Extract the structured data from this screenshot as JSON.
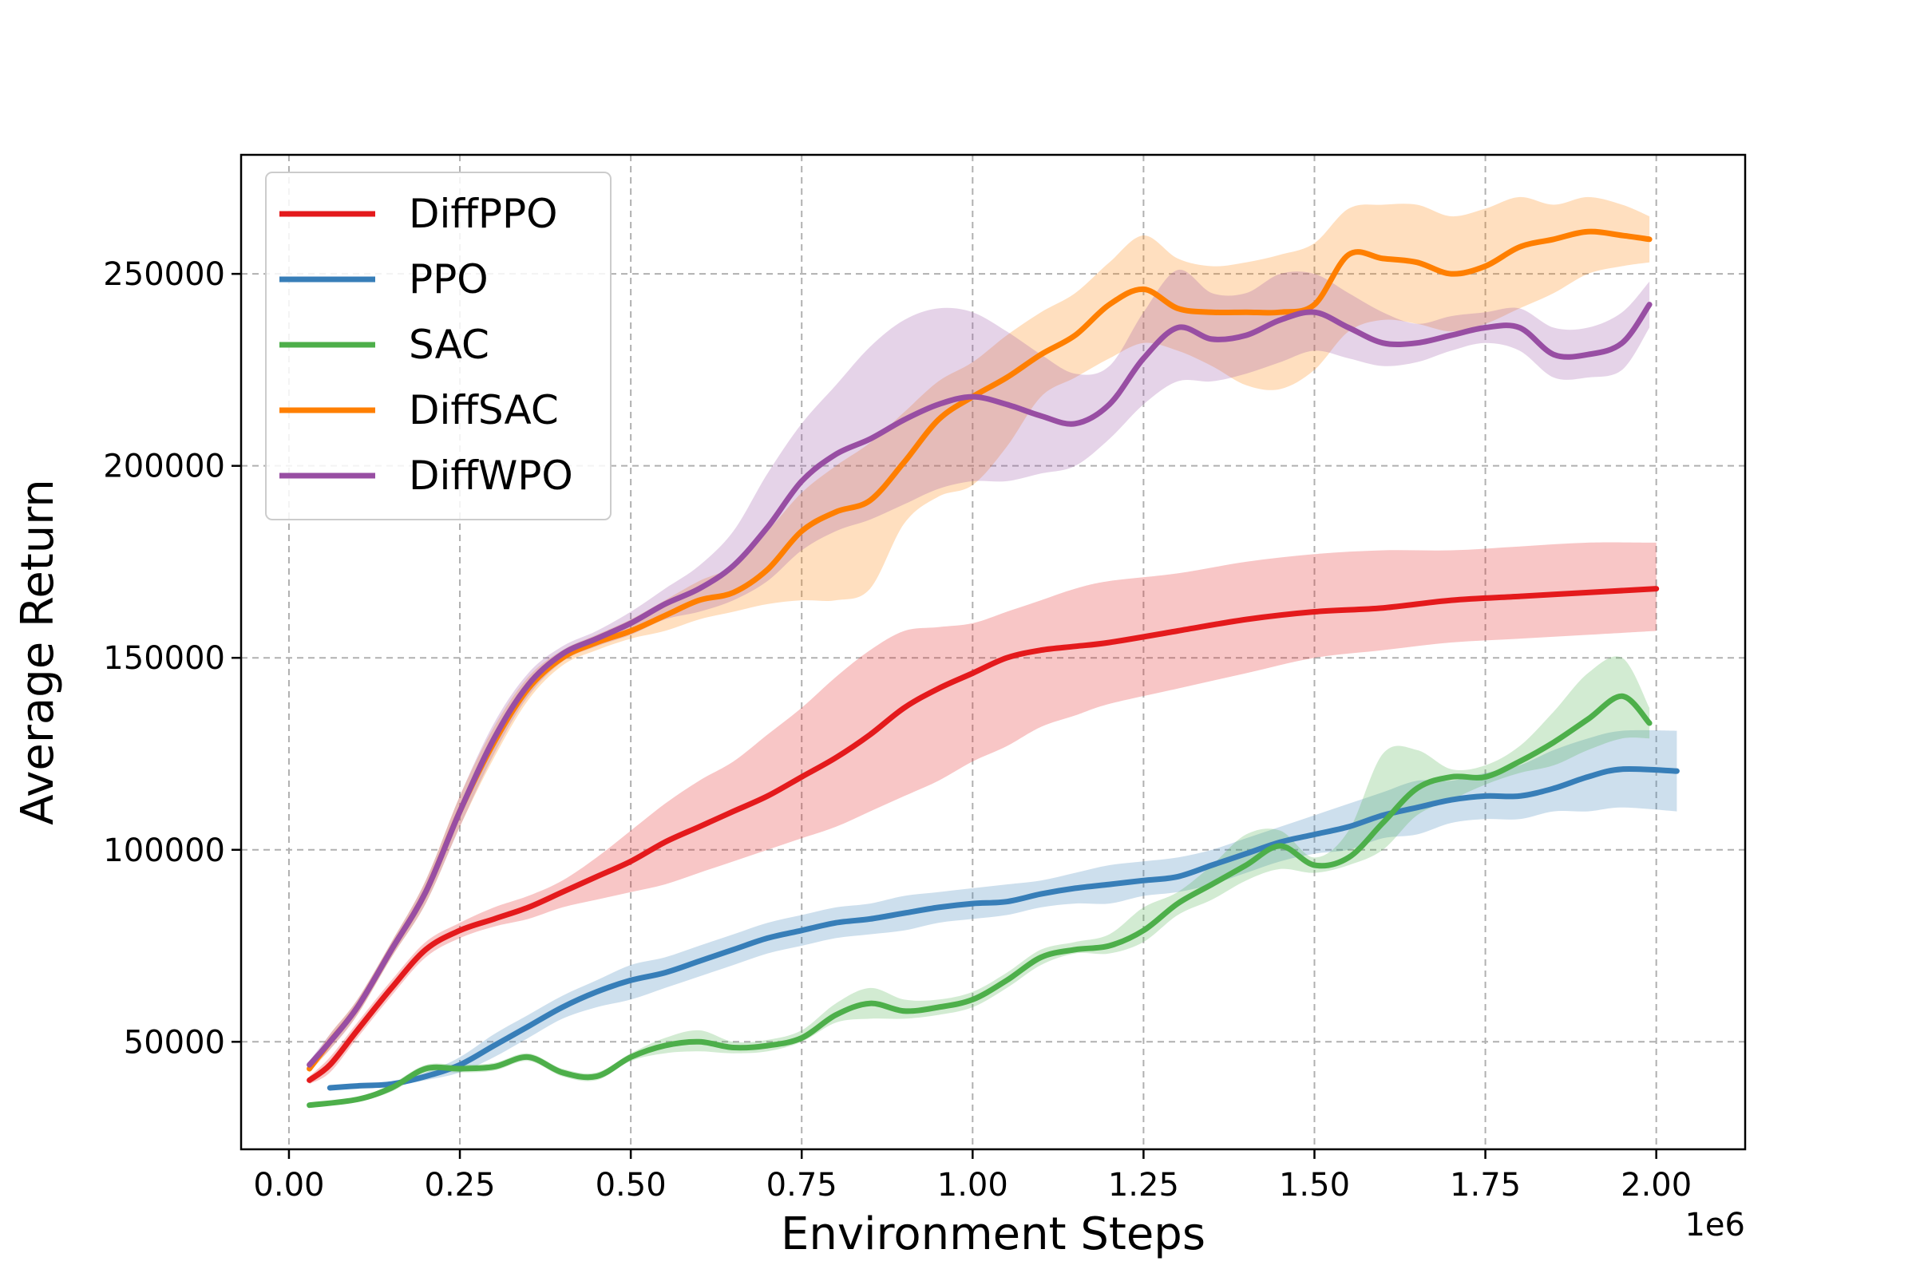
{
  "chart_data": {
    "type": "line",
    "xlabel": "Environment Steps",
    "ylabel": "Average Return",
    "x_multiplier_label": "1e6",
    "xlim": [
      -0.07,
      2.13
    ],
    "ylim": [
      22000,
      281000
    ],
    "xticks": [
      0.0,
      0.25,
      0.5,
      0.75,
      1.0,
      1.25,
      1.5,
      1.75,
      2.0
    ],
    "xtick_labels": [
      "0.00",
      "0.25",
      "0.50",
      "0.75",
      "1.00",
      "1.25",
      "1.50",
      "1.75",
      "2.00"
    ],
    "yticks": [
      50000,
      100000,
      150000,
      200000,
      250000
    ],
    "ytick_labels": [
      "50000",
      "100000",
      "150000",
      "200000",
      "250000"
    ],
    "grid": true,
    "legend_position": "top-left",
    "series": [
      {
        "name": "DiffPPO",
        "color": "#e41a1c",
        "x": [
          0.03,
          0.06,
          0.1,
          0.15,
          0.2,
          0.25,
          0.3,
          0.35,
          0.4,
          0.45,
          0.5,
          0.55,
          0.6,
          0.65,
          0.7,
          0.75,
          0.8,
          0.85,
          0.9,
          0.95,
          1.0,
          1.05,
          1.1,
          1.15,
          1.2,
          1.3,
          1.4,
          1.5,
          1.6,
          1.7,
          1.8,
          1.9,
          2.0
        ],
        "y": [
          40000,
          44000,
          53000,
          64000,
          74000,
          79000,
          82000,
          85000,
          89000,
          93000,
          97000,
          102000,
          106000,
          110000,
          114000,
          119000,
          124000,
          130000,
          137000,
          142000,
          146000,
          150000,
          152000,
          153000,
          154000,
          157000,
          160000,
          162000,
          163000,
          165000,
          166000,
          167000,
          168000
        ],
        "lower": [
          39000,
          42000,
          51000,
          62000,
          72000,
          77000,
          80000,
          82000,
          85000,
          87000,
          89000,
          91000,
          94000,
          97000,
          100000,
          103000,
          106000,
          110000,
          114000,
          118000,
          123000,
          127000,
          132000,
          135000,
          138000,
          142000,
          146000,
          150000,
          152000,
          154000,
          155000,
          156000,
          157000
        ],
        "upper": [
          41000,
          46000,
          55000,
          66000,
          76000,
          81000,
          85000,
          88000,
          92000,
          98000,
          105000,
          112000,
          118000,
          123000,
          130000,
          137000,
          145000,
          152000,
          157000,
          158000,
          159000,
          162000,
          165000,
          168000,
          170000,
          172000,
          175000,
          177000,
          178000,
          178000,
          179000,
          180000,
          180000
        ]
      },
      {
        "name": "PPO",
        "color": "#377eb8",
        "x": [
          0.06,
          0.1,
          0.15,
          0.2,
          0.25,
          0.3,
          0.35,
          0.4,
          0.45,
          0.5,
          0.55,
          0.6,
          0.65,
          0.7,
          0.75,
          0.8,
          0.85,
          0.9,
          0.95,
          1.0,
          1.05,
          1.1,
          1.15,
          1.2,
          1.25,
          1.3,
          1.35,
          1.4,
          1.45,
          1.5,
          1.55,
          1.6,
          1.65,
          1.7,
          1.75,
          1.8,
          1.85,
          1.9,
          1.95,
          2.03
        ],
        "y": [
          38000,
          38500,
          39000,
          41000,
          44000,
          49000,
          54000,
          59000,
          63000,
          66000,
          68000,
          71000,
          74000,
          77000,
          79000,
          81000,
          82000,
          83500,
          85000,
          86000,
          86500,
          88500,
          90000,
          91000,
          92000,
          93000,
          96000,
          99000,
          102000,
          104000,
          106000,
          109000,
          111000,
          113000,
          114000,
          114000,
          116000,
          119000,
          121000,
          120500
        ],
        "lower": [
          37500,
          38000,
          38500,
          40000,
          42000,
          46000,
          51000,
          56000,
          59000,
          61000,
          64000,
          67000,
          70000,
          73000,
          75000,
          77000,
          78000,
          79000,
          81000,
          82000,
          83000,
          85000,
          86000,
          86000,
          88000,
          89000,
          91000,
          94000,
          97000,
          99000,
          100000,
          103000,
          104000,
          107000,
          108000,
          108000,
          110000,
          110000,
          111000,
          110000
        ],
        "upper": [
          38500,
          39000,
          39500,
          42000,
          46000,
          52000,
          57000,
          62000,
          66000,
          70000,
          72000,
          75000,
          78000,
          81000,
          83000,
          85000,
          86000,
          88000,
          89000,
          90000,
          91000,
          92000,
          94000,
          96000,
          97000,
          98000,
          100000,
          103000,
          106000,
          109000,
          112000,
          115000,
          118000,
          118000,
          120000,
          122000,
          126000,
          129000,
          131000,
          131000
        ]
      },
      {
        "name": "SAC",
        "color": "#4daf4a",
        "x": [
          0.03,
          0.1,
          0.15,
          0.2,
          0.25,
          0.3,
          0.35,
          0.4,
          0.45,
          0.5,
          0.55,
          0.6,
          0.65,
          0.7,
          0.75,
          0.8,
          0.85,
          0.9,
          0.95,
          1.0,
          1.05,
          1.1,
          1.15,
          1.2,
          1.25,
          1.3,
          1.35,
          1.4,
          1.45,
          1.5,
          1.55,
          1.6,
          1.65,
          1.7,
          1.75,
          1.8,
          1.85,
          1.9,
          1.95,
          1.99
        ],
        "y": [
          33500,
          35000,
          38000,
          43000,
          43000,
          43500,
          46000,
          42000,
          41000,
          46000,
          49000,
          50000,
          48500,
          49000,
          51000,
          57000,
          60000,
          58000,
          59000,
          61000,
          66000,
          72000,
          74000,
          75000,
          79000,
          86000,
          91000,
          96000,
          101000,
          96000,
          98000,
          107000,
          116000,
          119000,
          119000,
          123000,
          128000,
          134000,
          140000,
          133000
        ],
        "lower": [
          33000,
          34500,
          37000,
          42000,
          42000,
          42500,
          45000,
          41000,
          40000,
          45000,
          47000,
          47500,
          47000,
          47500,
          50000,
          55000,
          56000,
          56000,
          57000,
          59000,
          64000,
          70000,
          73000,
          73000,
          76000,
          83000,
          87000,
          92000,
          95000,
          94000,
          96000,
          100000,
          109000,
          113000,
          117000,
          120000,
          122000,
          126000,
          129000,
          129000
        ],
        "upper": [
          34000,
          35500,
          39000,
          44000,
          44000,
          44500,
          47000,
          43000,
          42000,
          47000,
          51000,
          53000,
          50000,
          50500,
          53000,
          60000,
          64000,
          61000,
          61000,
          63000,
          68000,
          74000,
          76000,
          78000,
          85000,
          89000,
          96000,
          104000,
          105000,
          98000,
          105000,
          125000,
          126000,
          121000,
          122000,
          127000,
          136000,
          146000,
          150000,
          137000
        ]
      },
      {
        "name": "DiffSAC",
        "color": "#ff7f00",
        "x": [
          0.03,
          0.06,
          0.1,
          0.15,
          0.2,
          0.25,
          0.3,
          0.35,
          0.4,
          0.45,
          0.5,
          0.55,
          0.6,
          0.65,
          0.7,
          0.75,
          0.8,
          0.85,
          0.9,
          0.95,
          1.0,
          1.05,
          1.1,
          1.15,
          1.2,
          1.25,
          1.3,
          1.35,
          1.4,
          1.45,
          1.5,
          1.55,
          1.6,
          1.65,
          1.7,
          1.75,
          1.8,
          1.85,
          1.9,
          1.95,
          1.99
        ],
        "y": [
          43000,
          50000,
          59000,
          74000,
          89000,
          110000,
          128000,
          142000,
          150000,
          154000,
          157000,
          161000,
          165000,
          167000,
          173000,
          183000,
          188000,
          191000,
          201000,
          212000,
          218000,
          223000,
          229000,
          234000,
          242000,
          246000,
          241000,
          240000,
          240000,
          240000,
          242000,
          255000,
          254000,
          253000,
          250000,
          252000,
          257000,
          259000,
          261000,
          260000,
          259000
        ],
        "lower": [
          42000,
          48000,
          57000,
          72000,
          86000,
          106000,
          124000,
          139000,
          148000,
          152000,
          155000,
          157000,
          160000,
          162000,
          164000,
          165000,
          165000,
          168000,
          185000,
          192000,
          195000,
          205000,
          218000,
          223000,
          228000,
          232000,
          230000,
          226000,
          221000,
          220000,
          225000,
          235000,
          238000,
          237000,
          235000,
          237000,
          241000,
          245000,
          250000,
          252000,
          253000
        ],
        "upper": [
          44000,
          52000,
          61000,
          76000,
          92000,
          114000,
          132000,
          145000,
          152000,
          156000,
          160000,
          165000,
          170000,
          174000,
          183000,
          193000,
          200000,
          206000,
          214000,
          222000,
          227000,
          234000,
          240000,
          245000,
          253000,
          260000,
          254000,
          252000,
          253000,
          255000,
          258000,
          267000,
          268000,
          268000,
          265000,
          267000,
          270000,
          268000,
          270000,
          268000,
          265000
        ]
      },
      {
        "name": "DiffWPO",
        "color": "#984ea3",
        "x": [
          0.03,
          0.06,
          0.1,
          0.15,
          0.2,
          0.25,
          0.3,
          0.35,
          0.4,
          0.45,
          0.5,
          0.55,
          0.6,
          0.65,
          0.7,
          0.75,
          0.8,
          0.85,
          0.9,
          0.95,
          1.0,
          1.05,
          1.1,
          1.15,
          1.2,
          1.25,
          1.3,
          1.35,
          1.4,
          1.45,
          1.5,
          1.55,
          1.6,
          1.65,
          1.7,
          1.75,
          1.8,
          1.85,
          1.9,
          1.95,
          1.99
        ],
        "y": [
          44000,
          50000,
          59000,
          74000,
          89000,
          110000,
          129000,
          143000,
          151000,
          155000,
          159000,
          164000,
          168000,
          174000,
          184000,
          196000,
          203000,
          207000,
          212000,
          216000,
          218000,
          216000,
          213000,
          211000,
          216000,
          228000,
          236000,
          233000,
          234000,
          238000,
          240000,
          236000,
          232000,
          232000,
          234000,
          236000,
          236000,
          229000,
          229000,
          232000,
          242000
        ],
        "lower": [
          43000,
          48000,
          57000,
          72000,
          86000,
          106000,
          125000,
          140000,
          149000,
          153000,
          156000,
          160000,
          162000,
          165000,
          170000,
          178000,
          183000,
          186000,
          190000,
          194000,
          196000,
          196000,
          198000,
          200000,
          207000,
          216000,
          222000,
          222000,
          224000,
          227000,
          230000,
          228000,
          226000,
          227000,
          230000,
          232000,
          230000,
          223000,
          223000,
          225000,
          236000
        ],
        "upper": [
          45000,
          52000,
          61000,
          76000,
          92000,
          114000,
          133000,
          146000,
          153000,
          157000,
          162000,
          168000,
          174000,
          183000,
          198000,
          211000,
          221000,
          231000,
          238000,
          241000,
          240000,
          235000,
          229000,
          224000,
          226000,
          240000,
          251000,
          245000,
          245000,
          250000,
          250000,
          245000,
          240000,
          237000,
          239000,
          240000,
          241000,
          236000,
          236000,
          240000,
          248000
        ]
      }
    ]
  }
}
